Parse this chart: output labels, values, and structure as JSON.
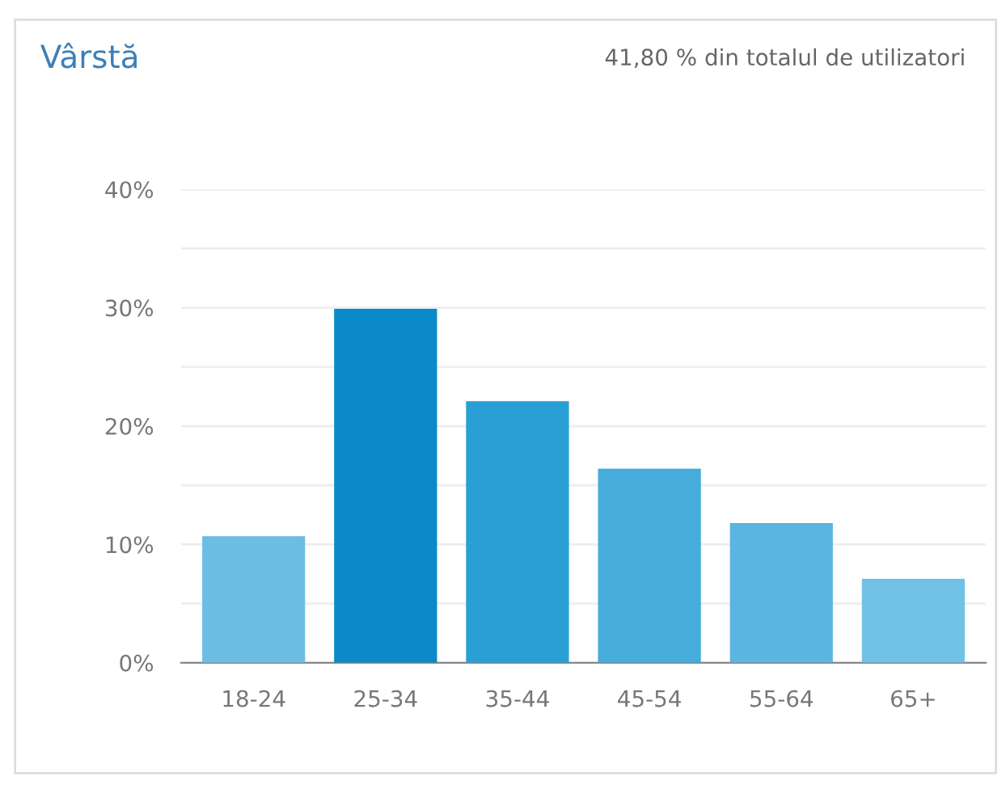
{
  "chart_data": {
    "type": "bar",
    "title": "Vârstă",
    "annotations": [
      "41,80 % din totalul de utilizatori"
    ],
    "categories": [
      "18-24",
      "25-34",
      "35-44",
      "45-54",
      "55-64",
      "65+"
    ],
    "values": [
      10.7,
      29.9,
      22.1,
      16.4,
      11.8,
      7.1
    ],
    "colors": [
      "#6cbde3",
      "#0a8ac8",
      "#2a9fd6",
      "#45acdc",
      "#5ab5e0",
      "#70c1e6"
    ],
    "ylim": [
      0,
      40
    ],
    "yticks": [
      {
        "value": 0,
        "label": "0%"
      },
      {
        "value": 5,
        "label": null
      },
      {
        "value": 10,
        "label": "10%"
      },
      {
        "value": 15,
        "label": null
      },
      {
        "value": 20,
        "label": "20%"
      },
      {
        "value": 25,
        "label": null
      },
      {
        "value": 30,
        "label": "30%"
      },
      {
        "value": 35,
        "label": null
      },
      {
        "value": 40,
        "label": "40%"
      }
    ],
    "grid": "y"
  }
}
